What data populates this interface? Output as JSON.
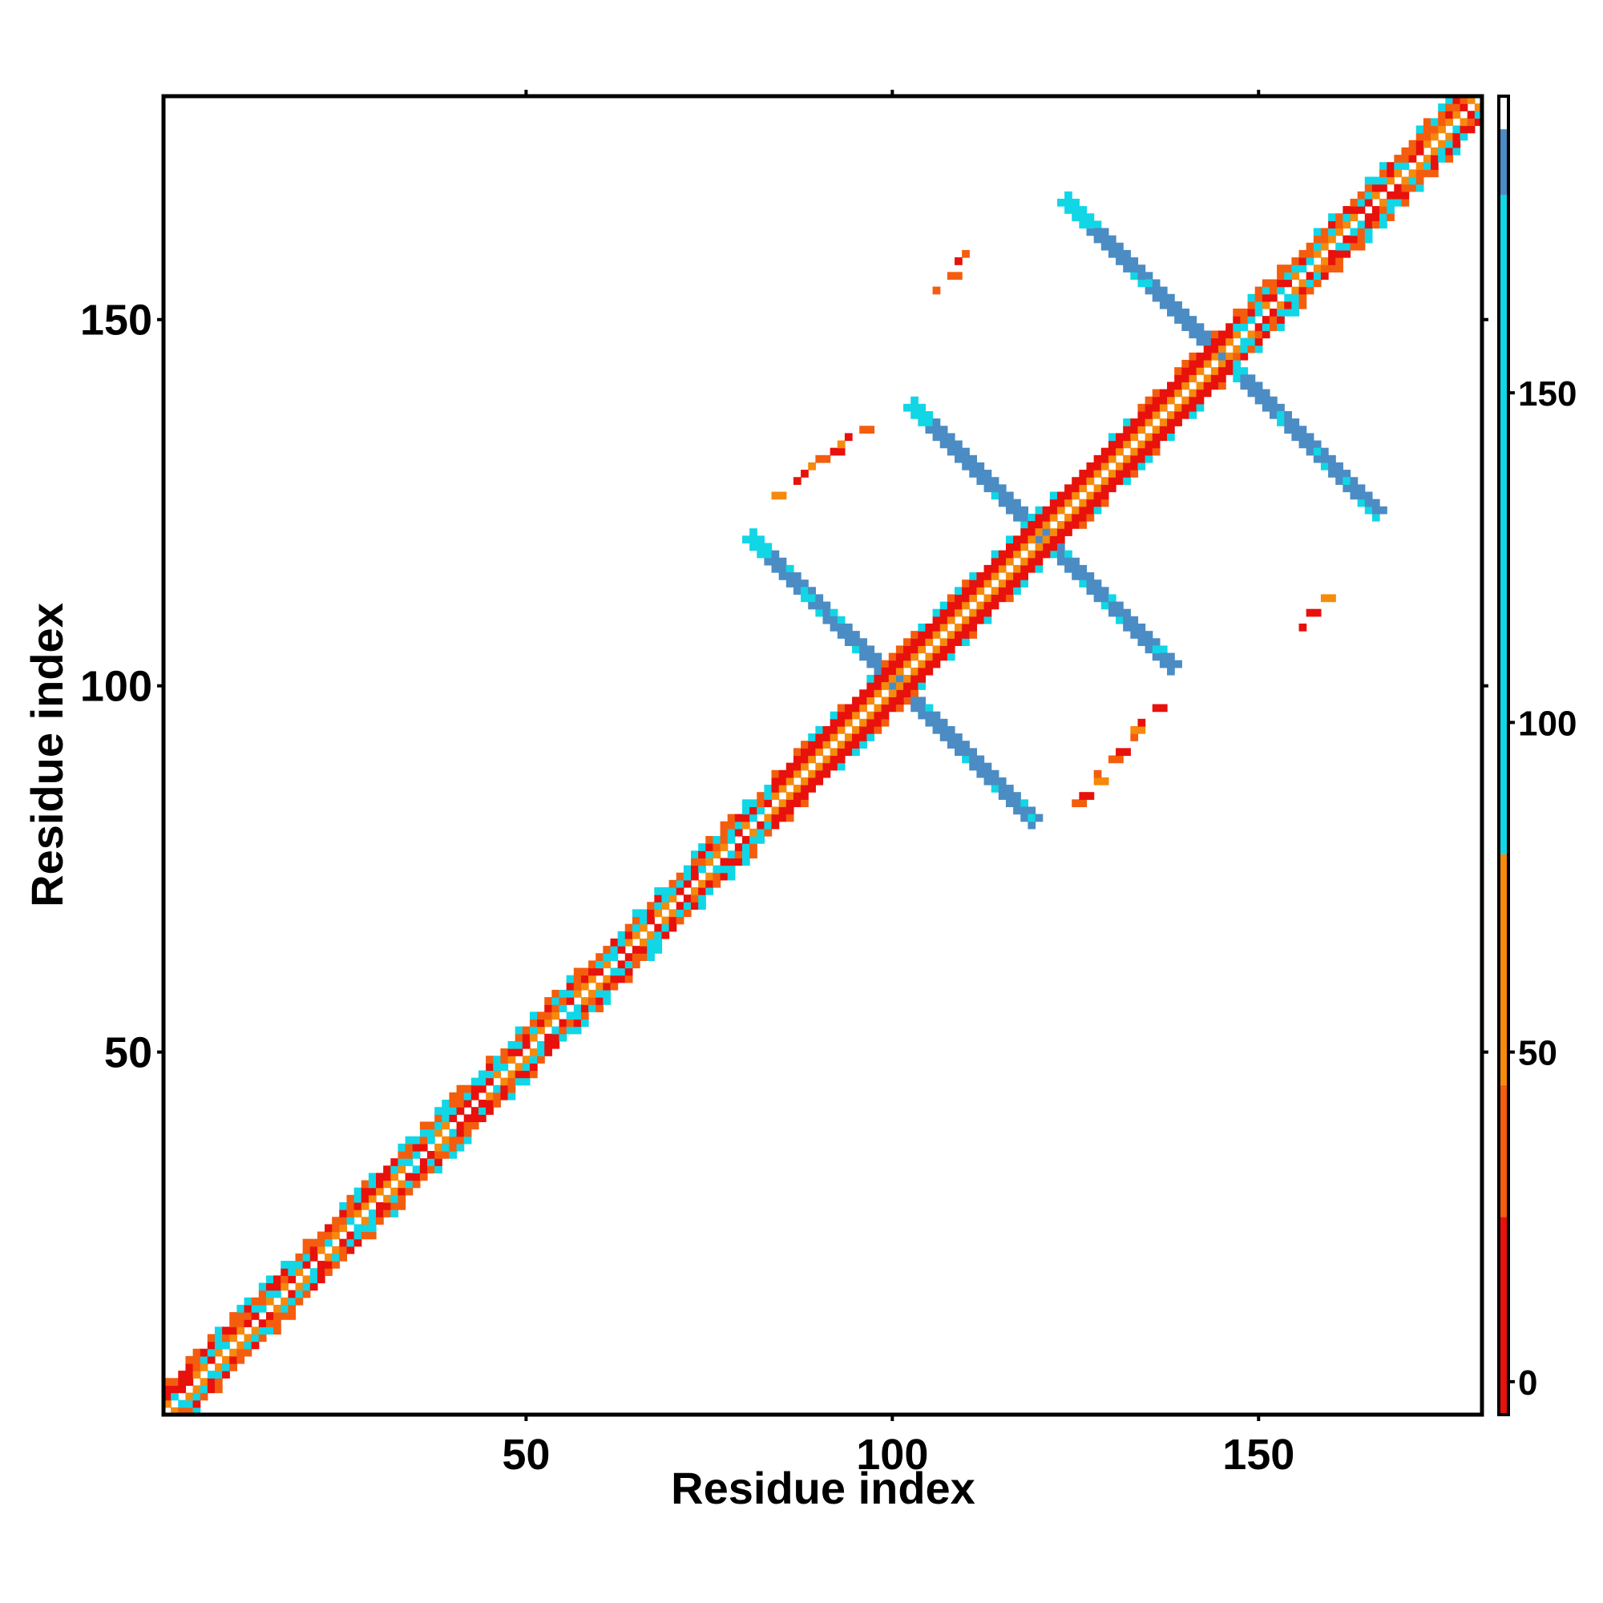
{
  "chart_data": {
    "type": "heatmap",
    "title": "",
    "xlabel": "Residue index",
    "ylabel": "Residue index",
    "xlim": [
      1,
      180
    ],
    "ylim": [
      1,
      180
    ],
    "xticks": [
      50,
      100,
      150
    ],
    "yticks": [
      50,
      100,
      150
    ],
    "grid": false,
    "colorbar": {
      "ticks": [
        0,
        50,
        100,
        150
      ],
      "range": [
        -5,
        195
      ],
      "segments": [
        {
          "from": -5,
          "to": 25,
          "color": "#e8110c"
        },
        {
          "from": 25,
          "to": 45,
          "color": "#f45d0e"
        },
        {
          "from": 45,
          "to": 80,
          "color": "#f58a0c"
        },
        {
          "from": 80,
          "to": 180,
          "color": "#11d6e6"
        },
        {
          "from": 180,
          "to": 190,
          "color": "#4b8cc4"
        },
        {
          "from": 190,
          "to": 195,
          "color": "#ffffff"
        }
      ]
    },
    "features": [
      {
        "kind": "diagonal_band",
        "from": 1,
        "to": 180,
        "colors": [
          "#e8110c",
          "#f58a0c",
          "#11d6e6"
        ]
      },
      {
        "kind": "antidiagonal_strand",
        "from": [
          81,
          120
        ],
        "to": [
          119,
          82
        ],
        "color": "#4b8cc4",
        "edge_color": "#11d6e6"
      },
      {
        "kind": "antidiagonal_strand",
        "from": [
          103,
          138
        ],
        "to": [
          138,
          103
        ],
        "color": "#4b8cc4",
        "edge_color": "#11d6e6"
      },
      {
        "kind": "antidiagonal_strand",
        "from": [
          124,
          166
        ],
        "to": [
          166,
          124
        ],
        "color": "#4b8cc4",
        "edge_color": "#11d6e6"
      },
      {
        "kind": "sparse_contacts",
        "from": [
          84,
          126
        ],
        "to": [
          96,
          135
        ],
        "colors": [
          "#e8110c",
          "#f45d0e",
          "#f58a0c"
        ]
      },
      {
        "kind": "sparse_contacts",
        "from": [
          125,
          84
        ],
        "to": [
          136,
          97
        ],
        "colors": [
          "#e8110c",
          "#f45d0e",
          "#f58a0c"
        ]
      },
      {
        "kind": "sparse_contacts",
        "from": [
          104,
          152
        ],
        "to": [
          112,
          161
        ],
        "colors": [
          "#e8110c",
          "#f45d0e",
          "#f58a0c"
        ]
      },
      {
        "kind": "sparse_contacts",
        "from": [
          152,
          104
        ],
        "to": [
          160,
          113
        ],
        "colors": [
          "#e8110c",
          "#f45d0e",
          "#f58a0c"
        ]
      }
    ]
  }
}
